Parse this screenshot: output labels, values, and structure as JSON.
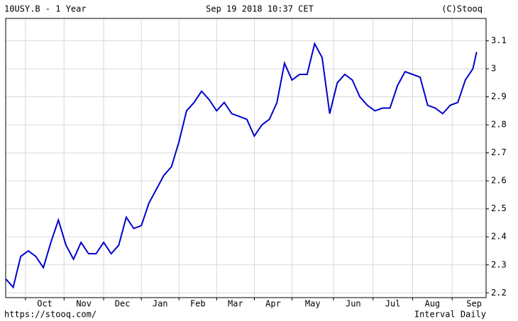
{
  "chart_data": {
    "type": "line",
    "title": "10USY.B - 1 Year",
    "subtitle": "Sep 19 2018 10:37 CET",
    "source": "(C)Stooq",
    "url": "https://stooq.com/",
    "interval": "Interval Daily",
    "x": [
      0,
      4,
      8,
      12,
      16,
      20,
      24,
      28,
      32,
      36,
      40,
      44,
      48,
      52,
      56,
      60,
      64,
      68,
      72,
      76,
      80,
      84,
      88,
      92,
      96,
      100,
      104,
      108,
      112,
      116,
      120,
      124,
      128,
      132,
      136,
      140,
      144,
      148,
      152,
      156,
      160,
      164,
      168,
      172,
      176,
      180,
      184,
      188,
      192,
      196,
      200,
      204,
      208,
      212,
      216,
      220,
      224,
      228,
      232,
      236,
      240,
      244,
      248,
      250
    ],
    "series": [
      {
        "name": "10USY.B",
        "color": "#0000cc",
        "values": [
          2.25,
          2.22,
          2.33,
          2.35,
          2.33,
          2.29,
          2.38,
          2.46,
          2.37,
          2.32,
          2.38,
          2.34,
          2.34,
          2.38,
          2.34,
          2.37,
          2.47,
          2.43,
          2.44,
          2.52,
          2.57,
          2.62,
          2.65,
          2.74,
          2.85,
          2.88,
          2.92,
          2.89,
          2.85,
          2.88,
          2.84,
          2.83,
          2.82,
          2.76,
          2.8,
          2.82,
          2.88,
          3.02,
          2.96,
          2.98,
          2.98,
          3.09,
          3.04,
          2.84,
          2.95,
          2.98,
          2.96,
          2.9,
          2.87,
          2.85,
          2.86,
          2.86,
          2.94,
          2.99,
          2.98,
          2.97,
          2.87,
          2.86,
          2.84,
          2.87,
          2.88,
          2.96,
          3.0,
          3.06
        ]
      }
    ],
    "xlim": [
      0,
      255
    ],
    "xticks": [
      {
        "value": 10.5,
        "label": "Oct"
      },
      {
        "value": 31,
        "label": "Nov"
      },
      {
        "value": 52,
        "label": "Dec"
      },
      {
        "value": 72,
        "label": "Jan"
      },
      {
        "value": 92,
        "label": "Feb"
      },
      {
        "value": 112,
        "label": "Mar"
      },
      {
        "value": 132,
        "label": "Apr"
      },
      {
        "value": 152,
        "label": "May"
      },
      {
        "value": 174,
        "label": "Jun"
      },
      {
        "value": 195,
        "label": "Jul"
      },
      {
        "value": 216,
        "label": "Aug"
      },
      {
        "value": 237,
        "label": "Sep"
      }
    ],
    "ylim": [
      2.183,
      3.18
    ],
    "yticks": [
      2.2,
      2.3,
      2.4,
      2.5,
      2.6,
      2.7,
      2.8,
      2.9,
      3.0,
      3.1
    ],
    "grid": true
  }
}
